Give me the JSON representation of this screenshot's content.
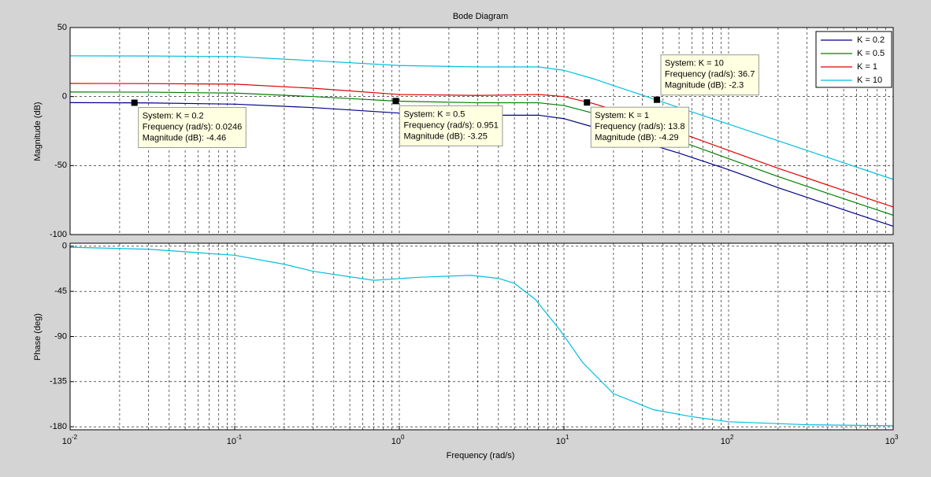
{
  "chart_data": [
    {
      "type": "line",
      "title": "Bode Diagram",
      "ylabel": "Magnitude (dB)",
      "log_x": true,
      "xlim": [
        0.01,
        1000
      ],
      "ylim": [
        -100,
        50
      ],
      "yticks": [
        -100,
        -50,
        0,
        50
      ],
      "grid": true,
      "legend": "upper right",
      "x": [
        0.01,
        0.03,
        0.1,
        0.3,
        1,
        3,
        7,
        10,
        15,
        20,
        30,
        50,
        100,
        200,
        500,
        1000
      ],
      "series": [
        {
          "name": "K = 0.2",
          "color": "#00008b",
          "values": [
            -4.4,
            -4.6,
            -5.5,
            -8,
            -12,
            -13.5,
            -13.5,
            -16,
            -22,
            -26,
            -33,
            -41,
            -53,
            -66,
            -82,
            -94
          ]
        },
        {
          "name": "K = 0.5",
          "color": "#008000",
          "values": [
            3.3,
            3.2,
            2.5,
            0,
            -3.4,
            -4.5,
            -4.5,
            -6.5,
            -12,
            -16,
            -23,
            -32,
            -45,
            -58,
            -74,
            -86
          ]
        },
        {
          "name": "K = 1",
          "color": "#e00000",
          "values": [
            9.5,
            9.4,
            9,
            6,
            1.5,
            0.8,
            1.5,
            0,
            -5,
            -9.5,
            -17,
            -26,
            -39,
            -52,
            -68,
            -80
          ]
        },
        {
          "name": "K = 10",
          "color": "#00bfdf",
          "values": [
            29.5,
            29.4,
            29,
            26,
            22.5,
            21.5,
            21.5,
            19,
            13,
            8,
            1,
            -8,
            -20,
            -32,
            -48,
            -60
          ]
        }
      ],
      "datatips": [
        {
          "lines": [
            "System: K = 0.2",
            "Frequency (rad/s): 0.0246",
            "Magnitude (dB): -4.46"
          ],
          "x": 0.0246,
          "y": -4.46
        },
        {
          "lines": [
            "System: K = 0.5",
            "Frequency (rad/s): 0.951",
            "Magnitude (dB): -3.25"
          ],
          "x": 0.951,
          "y": -3.25
        },
        {
          "lines": [
            "System: K = 1",
            "Frequency (rad/s): 13.8",
            "Magnitude (dB): -4.29"
          ],
          "x": 13.8,
          "y": -4.29
        },
        {
          "lines": [
            "System: K = 10",
            "Frequency (rad/s): 36.7",
            "Magnitude (dB): -2.3"
          ],
          "x": 36.7,
          "y": -2.3
        }
      ]
    },
    {
      "type": "line",
      "ylabel": "Phase (deg)",
      "xlabel": "Frequency  (rad/s)",
      "log_x": true,
      "xlim": [
        0.01,
        1000
      ],
      "ylim": [
        -183,
        3
      ],
      "yticks": [
        -180,
        -135,
        -90,
        -45,
        0
      ],
      "grid": true,
      "xticks": [
        {
          "value": 0.01,
          "label": "10",
          "exponent": "-2"
        },
        {
          "value": 0.1,
          "label": "10",
          "exponent": "-1"
        },
        {
          "value": 1,
          "label": "10",
          "exponent": "0"
        },
        {
          "value": 10,
          "label": "10",
          "exponent": "1"
        },
        {
          "value": 100,
          "label": "10",
          "exponent": "2"
        },
        {
          "value": 1000,
          "label": "10",
          "exponent": "3"
        }
      ],
      "x": [
        0.01,
        0.03,
        0.1,
        0.2,
        0.3,
        0.7,
        1.3,
        2.7,
        4,
        5,
        6.7,
        9.5,
        13,
        20,
        35,
        60,
        100,
        300,
        1000
      ],
      "series": [
        {
          "color": "#00bfdf",
          "values": [
            -1,
            -3,
            -9,
            -18,
            -25,
            -34,
            -31,
            -29,
            -32,
            -37,
            -53,
            -84,
            -116,
            -147,
            -163,
            -170,
            -175,
            -178,
            -179
          ]
        }
      ]
    }
  ]
}
